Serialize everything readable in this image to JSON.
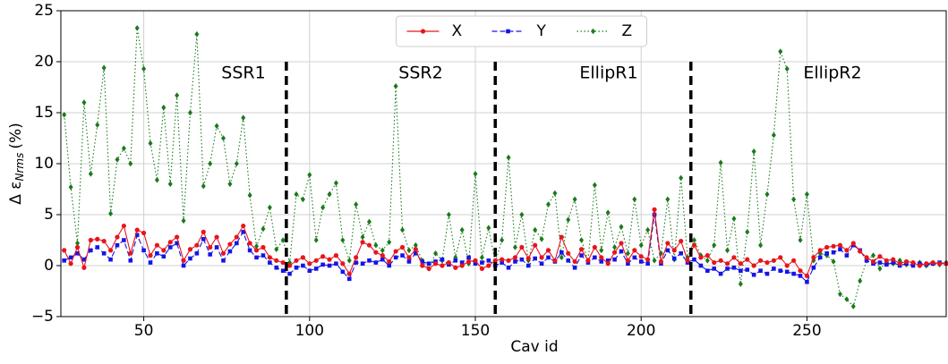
{
  "chart_data": {
    "type": "line",
    "xlabel": "Cav id",
    "ylabel": {
      "main": "Δ ε",
      "sub": "Nrms",
      "unit": "(%)"
    },
    "xlim": [
      25,
      292
    ],
    "ylim": [
      -5,
      25
    ],
    "xticks": [
      50,
      100,
      150,
      200,
      250
    ],
    "yticks": [
      {
        "value": -5,
        "label": "−5"
      },
      0,
      5,
      10,
      15,
      20,
      25
    ],
    "grid": true,
    "legend": "upper center",
    "vlines": [
      93,
      156,
      215
    ],
    "annotations": [
      "SSR1",
      "SSR2",
      "EllipR1",
      "EllipR2"
    ],
    "x": [
      26,
      28,
      30,
      32,
      34,
      36,
      38,
      40,
      42,
      44,
      46,
      48,
      50,
      52,
      54,
      56,
      58,
      60,
      62,
      64,
      66,
      68,
      70,
      72,
      74,
      76,
      78,
      80,
      82,
      84,
      86,
      88,
      90,
      92,
      94,
      96,
      98,
      100,
      102,
      104,
      106,
      108,
      110,
      112,
      114,
      116,
      118,
      120,
      122,
      124,
      126,
      128,
      130,
      132,
      134,
      136,
      138,
      140,
      142,
      144,
      146,
      148,
      150,
      152,
      154,
      156,
      158,
      160,
      162,
      164,
      166,
      168,
      170,
      172,
      174,
      176,
      178,
      180,
      182,
      184,
      186,
      188,
      190,
      192,
      194,
      196,
      198,
      200,
      202,
      204,
      206,
      208,
      210,
      212,
      214,
      216,
      218,
      220,
      222,
      224,
      226,
      228,
      230,
      232,
      234,
      236,
      238,
      240,
      242,
      244,
      246,
      248,
      250,
      252,
      254,
      256,
      258,
      260,
      262,
      264,
      266,
      268,
      270,
      272,
      274,
      276,
      278,
      280,
      282,
      284,
      286,
      288,
      290,
      292
    ],
    "series": [
      {
        "name": "X",
        "color": "#e8141c",
        "marker": "circle",
        "linestyle": "solid",
        "values": [
          1.5,
          0.2,
          1.8,
          -0.2,
          2.5,
          2.6,
          2.4,
          1.5,
          2.8,
          3.9,
          1.2,
          3.5,
          3.2,
          1.0,
          2.0,
          1.5,
          2.3,
          2.8,
          0.5,
          1.6,
          2.0,
          3.3,
          1.8,
          2.8,
          1.2,
          2.1,
          2.8,
          3.9,
          2.2,
          1.5,
          1.8,
          0.8,
          0.5,
          0.3,
          0.0,
          0.5,
          0.8,
          0.2,
          0.5,
          0.9,
          0.6,
          1.0,
          0.2,
          -0.8,
          0.8,
          2.3,
          2.0,
          1.3,
          1.0,
          0.4,
          1.4,
          1.8,
          0.8,
          1.6,
          0.0,
          -0.3,
          0.2,
          0.0,
          0.3,
          -0.2,
          0.0,
          0.4,
          0.5,
          -0.3,
          0.0,
          0.5,
          0.6,
          0.5,
          0.8,
          1.8,
          0.7,
          2.0,
          0.8,
          1.5,
          0.5,
          2.8,
          1.2,
          0.4,
          1.6,
          0.5,
          1.8,
          0.8,
          0.2,
          1.3,
          2.2,
          0.5,
          1.5,
          0.9,
          0.6,
          5.5,
          0.4,
          2.2,
          1.5,
          2.4,
          0.5,
          2.0,
          0.8,
          1.0,
          0.3,
          0.5,
          0.2,
          0.8,
          0.2,
          0.6,
          0.0,
          0.5,
          0.3,
          0.5,
          0.8,
          0.0,
          0.5,
          -0.5,
          -1.0,
          0.8,
          1.5,
          1.8,
          1.9,
          2.0,
          1.5,
          2.2,
          1.4,
          0.8,
          0.4,
          0.9,
          0.5,
          0.6,
          0.2,
          0.4,
          0.3,
          0.0,
          0.2,
          0.3,
          0.2,
          0.2
        ]
      },
      {
        "name": "Y",
        "color": "#1414e8",
        "marker": "square",
        "linestyle": "dashed",
        "values": [
          0.5,
          0.8,
          1.2,
          0.6,
          1.5,
          1.8,
          1.2,
          0.6,
          2.0,
          2.5,
          0.5,
          3.0,
          1.5,
          0.3,
          1.2,
          0.9,
          1.8,
          2.2,
          0.0,
          0.7,
          1.2,
          2.6,
          1.1,
          1.8,
          0.5,
          1.4,
          2.2,
          3.3,
          1.5,
          0.8,
          1.0,
          0.3,
          -0.2,
          -0.5,
          -0.8,
          -0.2,
          0.0,
          -0.5,
          -0.3,
          0.1,
          0.0,
          0.2,
          -0.6,
          -1.3,
          0.3,
          0.2,
          0.5,
          0.3,
          0.6,
          0.0,
          0.8,
          1.0,
          0.4,
          1.2,
          0.4,
          0.2,
          0.4,
          0.6,
          0.1,
          0.5,
          0.3,
          0.8,
          0.2,
          0.3,
          0.5,
          0.0,
          0.3,
          -0.2,
          0.4,
          0.6,
          0.0,
          0.7,
          0.2,
          0.8,
          0.4,
          1.3,
          0.5,
          -0.2,
          1.0,
          0.3,
          0.8,
          0.4,
          0.5,
          0.6,
          1.4,
          0.2,
          0.8,
          0.4,
          0.2,
          5.0,
          0.2,
          1.5,
          0.7,
          1.2,
          0.3,
          0.6,
          0.0,
          -0.5,
          -0.3,
          -0.8,
          -0.3,
          -0.2,
          -0.5,
          -0.4,
          -0.9,
          -0.5,
          -0.8,
          -0.3,
          -0.5,
          -0.6,
          -0.8,
          -1.0,
          -1.6,
          -0.2,
          0.8,
          1.2,
          1.3,
          1.6,
          1.0,
          2.0,
          1.5,
          0.5,
          0.2,
          0.3,
          0.1,
          0.3,
          0.0,
          0.2,
          0.0,
          0.2,
          0.1,
          0.2,
          0.3,
          0.2
        ]
      },
      {
        "name": "Z",
        "color": "#1a7a1a",
        "marker": "diamond",
        "linestyle": "dotted",
        "values": [
          14.8,
          7.7,
          2.2,
          16.0,
          9.0,
          13.8,
          19.4,
          5.1,
          10.4,
          11.5,
          10.0,
          23.3,
          19.3,
          12.0,
          8.4,
          15.5,
          8.0,
          16.7,
          4.4,
          15.0,
          22.7,
          7.8,
          10.0,
          13.7,
          12.5,
          8.0,
          10.0,
          14.5,
          6.9,
          1.9,
          3.6,
          5.7,
          1.6,
          2.5,
          0.3,
          7.0,
          6.5,
          8.9,
          2.5,
          5.7,
          7.0,
          8.1,
          2.5,
          0.5,
          6.0,
          2.8,
          4.3,
          2.0,
          1.5,
          2.3,
          17.6,
          3.5,
          1.5,
          2.0,
          0.5,
          -0.3,
          1.2,
          0.5,
          5.0,
          0.8,
          3.5,
          0.2,
          9.0,
          0.8,
          3.7,
          0.3,
          2.5,
          10.6,
          1.8,
          5.0,
          0.5,
          3.5,
          2.6,
          6.0,
          7.1,
          0.8,
          4.5,
          6.5,
          2.5,
          0.5,
          7.9,
          1.5,
          5.2,
          1.8,
          3.8,
          1.2,
          6.5,
          2.0,
          3.5,
          0.5,
          1.2,
          6.5,
          0.6,
          8.6,
          0.8,
          2.5,
          1.0,
          0.5,
          2.0,
          10.1,
          1.5,
          4.6,
          -1.8,
          3.3,
          11.2,
          2.0,
          7.0,
          12.8,
          21.0,
          19.3,
          6.5,
          2.5,
          7.0,
          0.5,
          1.2,
          1.0,
          0.4,
          -2.8,
          -3.3,
          -4.0,
          -1.5,
          0.5,
          1.0,
          -0.3,
          0.3,
          0.2,
          0.5,
          0.1,
          0.2,
          0.3,
          0.0,
          0.2,
          0.1,
          0.3
        ]
      }
    ]
  }
}
